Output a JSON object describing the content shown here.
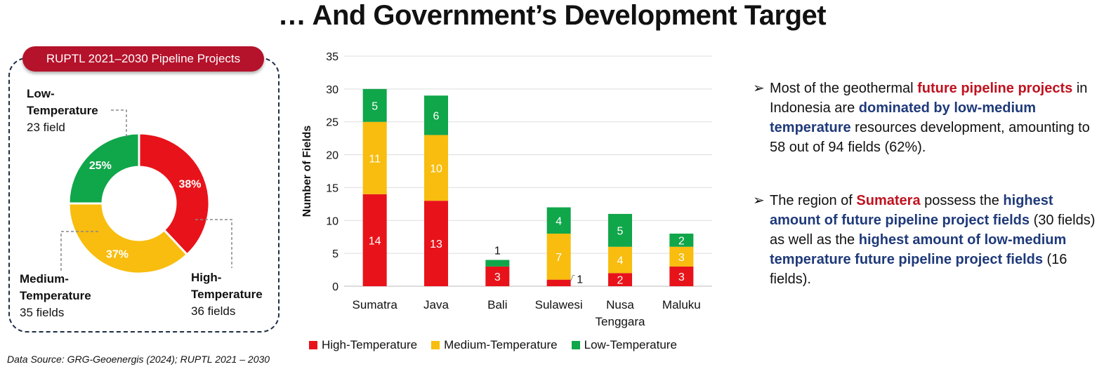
{
  "title": "… And Government’s Development Target",
  "donut": {
    "pill": "RUPTL 2021–2030 Pipeline Projects",
    "slices": [
      {
        "name": "High-Temperature",
        "pct": 38,
        "label": "38%",
        "color": "#e8131a",
        "head": "High-Temperature",
        "head1": "High-",
        "head2": "Temperature",
        "sub": "36 fields"
      },
      {
        "name": "Medium-Temperature",
        "pct": 37,
        "label": "37%",
        "color": "#f8bd0e",
        "head": "Medium-Temperature",
        "head1": "Medium-",
        "head2": "Temperature",
        "sub": "35 fields"
      },
      {
        "name": "Low-Temperature",
        "pct": 25,
        "label": "25%",
        "color": "#10a64a",
        "head": "Low-Temperature",
        "head1": "Low-",
        "head2": "Temperature",
        "sub": "23 field"
      }
    ]
  },
  "chart_data": {
    "type": "bar",
    "stacked": true,
    "categories": [
      "Sumatra",
      "Java",
      "Bali",
      "Sulawesi",
      "Nusa Tenggara",
      "Maluku"
    ],
    "category_lines": [
      [
        "Sumatra"
      ],
      [
        "Java"
      ],
      [
        "Bali"
      ],
      [
        "Sulawesi"
      ],
      [
        "Nusa",
        "Tenggara"
      ],
      [
        "Maluku"
      ]
    ],
    "series": [
      {
        "name": "High-Temperature",
        "color": "#e8131a",
        "values": [
          14,
          13,
          3,
          1,
          2,
          3
        ]
      },
      {
        "name": "Medium-Temperature",
        "color": "#f8bd0e",
        "values": [
          11,
          10,
          0,
          7,
          4,
          3
        ]
      },
      {
        "name": "Low-Temperature",
        "color": "#10a64a",
        "values": [
          5,
          6,
          1,
          4,
          5,
          2
        ]
      }
    ],
    "ylabel": "Number of Fields",
    "ylim": [
      0,
      35
    ],
    "yticks": [
      0,
      5,
      10,
      15,
      20,
      25,
      30,
      35
    ],
    "legend": "bottom"
  },
  "bullets": [
    [
      {
        "t": "Most of the geothermal ",
        "c": ""
      },
      {
        "t": "future pipeline projects",
        "c": "red"
      },
      {
        "t": " in Indonesia are ",
        "c": ""
      },
      {
        "t": "dominated by low-medium temperature",
        "c": "navy"
      },
      {
        "t": " resources development, amounting to 58 out of 94 fields (62%).",
        "c": ""
      }
    ],
    [
      {
        "t": "The region of ",
        "c": ""
      },
      {
        "t": "Sumatera",
        "c": "red"
      },
      {
        "t": " possess the ",
        "c": ""
      },
      {
        "t": "highest amount of future pipeline project fields",
        "c": "navy"
      },
      {
        "t": " (30 fields) as well as the ",
        "c": ""
      },
      {
        "t": "highest amount of low-medium temperature future pipeline project fields",
        "c": "navy"
      },
      {
        "t": " (16 fields).",
        "c": ""
      }
    ]
  ],
  "source": "Data Source: GRG-Geoenergis (2024); RUPTL 2021 – 2030"
}
